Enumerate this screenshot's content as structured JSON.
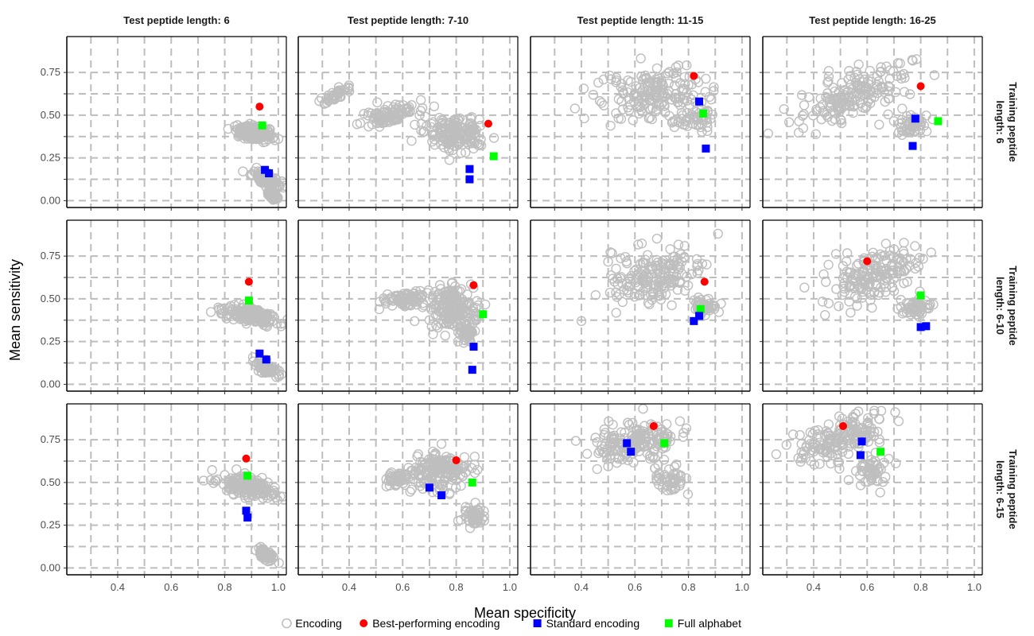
{
  "chart_data": {
    "type": "scatter",
    "title": "",
    "xlabel": "Mean specificity",
    "ylabel": "Mean sensitivity",
    "xlim": [
      0.21,
      1.03
    ],
    "ylim": [
      -0.04,
      0.96
    ],
    "x_ticks": [
      "0.4",
      "0.6",
      "0.8",
      "1.0"
    ],
    "y_ticks": [
      "0.00",
      "0.25",
      "0.50",
      "0.75"
    ],
    "grid": true,
    "legend_position": "bottom",
    "colors": {
      "encoding": "#bebebe",
      "best": "#ff0000",
      "standard": "#0000ff",
      "full": "#00ff00"
    },
    "col_facets": [
      "Test peptide length: 6",
      "Test peptide length: 7-10",
      "Test peptide length: 11-15",
      "Test peptide length: 16-25"
    ],
    "row_facets": [
      [
        "Training peptide",
        "length: 6"
      ],
      [
        "Training peptide",
        "length: 6-10"
      ],
      [
        "Training peptide",
        "length: 6-15"
      ]
    ],
    "legend": [
      {
        "label": "Encoding",
        "shape": "open-circle",
        "color": "#bebebe"
      },
      {
        "label": "Best-performing encoding",
        "shape": "circle",
        "color": "#ff0000"
      },
      {
        "label": "Standard encoding",
        "shape": "square",
        "color": "#0000ff"
      },
      {
        "label": "Full alphabet",
        "shape": "square",
        "color": "#00ff00"
      }
    ],
    "panels": [
      {
        "row": 0,
        "col": 0,
        "cloud": [
          [
            0.91,
            0.4,
            0.03,
            0.13,
            -80,
            1.0
          ],
          [
            0.96,
            0.12,
            0.02,
            0.1,
            -65,
            0.6
          ],
          [
            0.98,
            0.03,
            0.015,
            0.03,
            -50,
            0.3
          ]
        ],
        "best": [
          0.93,
          0.55
        ],
        "standard": [
          [
            0.95,
            0.18
          ],
          [
            0.965,
            0.16
          ]
        ],
        "full": [
          0.94,
          0.44
        ]
      },
      {
        "row": 0,
        "col": 1,
        "cloud": [
          [
            0.8,
            0.4,
            0.13,
            0.11,
            0,
            1.0
          ],
          [
            0.55,
            0.5,
            0.12,
            0.05,
            -15,
            0.6
          ],
          [
            0.35,
            0.62,
            0.07,
            0.04,
            -25,
            0.25
          ]
        ],
        "best": [
          0.92,
          0.45
        ],
        "standard": [
          [
            0.85,
            0.185
          ],
          [
            0.85,
            0.125
          ]
        ],
        "full": [
          0.94,
          0.26
        ]
      },
      {
        "row": 0,
        "col": 2,
        "cloud": [
          [
            0.66,
            0.62,
            0.22,
            0.17,
            -8,
            1.0
          ],
          [
            0.82,
            0.48,
            0.08,
            0.08,
            0,
            0.3
          ]
        ],
        "best": [
          0.82,
          0.73
        ],
        "standard": [
          [
            0.84,
            0.58
          ],
          [
            0.865,
            0.305
          ]
        ],
        "full": [
          0.855,
          0.51
        ]
      },
      {
        "row": 0,
        "col": 3,
        "cloud": [
          [
            0.55,
            0.62,
            0.26,
            0.13,
            -22,
            1.0
          ],
          [
            0.78,
            0.45,
            0.08,
            0.07,
            0,
            0.3
          ]
        ],
        "best": [
          0.8,
          0.67
        ],
        "standard": [
          [
            0.78,
            0.48
          ],
          [
            0.77,
            0.32
          ]
        ],
        "full": [
          0.865,
          0.465
        ]
      },
      {
        "row": 1,
        "col": 0,
        "cloud": [
          [
            0.9,
            0.4,
            0.03,
            0.18,
            -78,
            1.0
          ],
          [
            0.95,
            0.1,
            0.02,
            0.08,
            -60,
            0.5
          ]
        ],
        "best": [
          0.89,
          0.6
        ],
        "standard": [
          [
            0.93,
            0.18
          ],
          [
            0.955,
            0.145
          ]
        ],
        "full": [
          0.89,
          0.49
        ]
      },
      {
        "row": 1,
        "col": 1,
        "cloud": [
          [
            0.78,
            0.45,
            0.1,
            0.14,
            0,
            1.0
          ],
          [
            0.6,
            0.5,
            0.08,
            0.05,
            -10,
            0.5
          ],
          [
            0.84,
            0.3,
            0.03,
            0.06,
            0,
            0.3
          ]
        ],
        "best": [
          0.865,
          0.58
        ],
        "standard": [
          [
            0.865,
            0.22
          ],
          [
            0.86,
            0.085
          ]
        ],
        "full": [
          0.9,
          0.41
        ]
      },
      {
        "row": 1,
        "col": 2,
        "cloud": [
          [
            0.68,
            0.63,
            0.2,
            0.19,
            -10,
            1.0
          ],
          [
            0.86,
            0.45,
            0.05,
            0.06,
            0,
            0.3
          ]
        ],
        "best": [
          0.86,
          0.6
        ],
        "standard": [
          [
            0.82,
            0.37
          ],
          [
            0.84,
            0.4
          ]
        ],
        "full": [
          0.845,
          0.44
        ]
      },
      {
        "row": 1,
        "col": 3,
        "cloud": [
          [
            0.62,
            0.63,
            0.2,
            0.15,
            -22,
            1.0
          ],
          [
            0.78,
            0.45,
            0.06,
            0.06,
            0,
            0.3
          ]
        ],
        "best": [
          0.6,
          0.72
        ],
        "standard": [
          [
            0.8,
            0.335
          ],
          [
            0.82,
            0.34
          ]
        ],
        "full": [
          0.8,
          0.52
        ]
      },
      {
        "row": 2,
        "col": 0,
        "cloud": [
          [
            0.89,
            0.47,
            0.04,
            0.2,
            -80,
            1.0
          ],
          [
            0.95,
            0.08,
            0.02,
            0.06,
            -55,
            0.4
          ]
        ],
        "best": [
          0.88,
          0.64
        ],
        "standard": [
          [
            0.88,
            0.335
          ],
          [
            0.885,
            0.295
          ]
        ],
        "full": [
          0.885,
          0.54
        ]
      },
      {
        "row": 2,
        "col": 1,
        "cloud": [
          [
            0.74,
            0.56,
            0.12,
            0.12,
            0,
            1.0
          ],
          [
            0.58,
            0.52,
            0.05,
            0.05,
            -10,
            0.3
          ],
          [
            0.86,
            0.3,
            0.04,
            0.06,
            0,
            0.3
          ]
        ],
        "best": [
          0.8,
          0.63
        ],
        "standard": [
          [
            0.7,
            0.47
          ],
          [
            0.745,
            0.425
          ]
        ],
        "full": [
          0.86,
          0.5
        ]
      },
      {
        "row": 2,
        "col": 2,
        "cloud": [
          [
            0.6,
            0.74,
            0.17,
            0.13,
            -8,
            1.0
          ],
          [
            0.74,
            0.52,
            0.06,
            0.1,
            -30,
            0.3
          ]
        ],
        "best": [
          0.67,
          0.83
        ],
        "standard": [
          [
            0.57,
            0.73
          ],
          [
            0.585,
            0.68
          ]
        ],
        "full": [
          0.71,
          0.73
        ]
      },
      {
        "row": 2,
        "col": 3,
        "cloud": [
          [
            0.5,
            0.77,
            0.22,
            0.12,
            -18,
            1.0
          ],
          [
            0.62,
            0.55,
            0.07,
            0.1,
            -35,
            0.3
          ]
        ],
        "best": [
          0.51,
          0.83
        ],
        "standard": [
          [
            0.58,
            0.74
          ],
          [
            0.575,
            0.66
          ]
        ],
        "full": [
          0.65,
          0.68
        ]
      }
    ]
  }
}
